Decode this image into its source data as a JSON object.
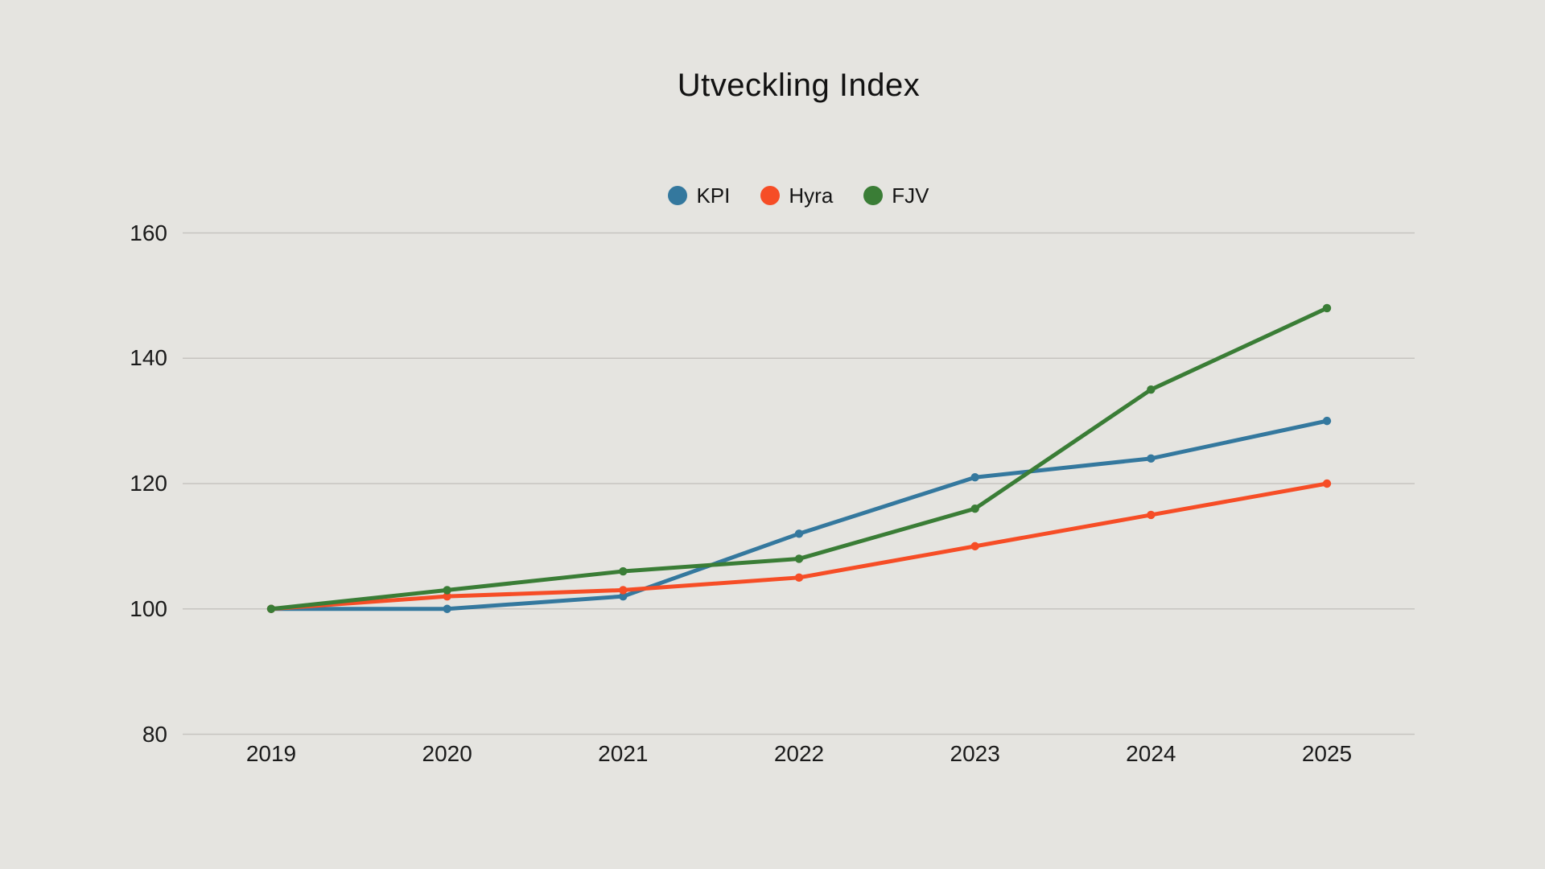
{
  "chart_data": {
    "type": "line",
    "title": "Utveckling Index",
    "categories": [
      "2019",
      "2020",
      "2021",
      "2022",
      "2023",
      "2024",
      "2025"
    ],
    "series": [
      {
        "name": "KPI",
        "color": "#34789e",
        "values": [
          100,
          100,
          102,
          112,
          121,
          124,
          130
        ]
      },
      {
        "name": "Hyra",
        "color": "#f64d26",
        "values": [
          100,
          102,
          103,
          105,
          110,
          115,
          120
        ]
      },
      {
        "name": "FJV",
        "color": "#3a7d36",
        "values": [
          100,
          103,
          106,
          108,
          116,
          135,
          148
        ]
      }
    ],
    "ylim": [
      80,
      160
    ],
    "yticks": [
      80,
      100,
      120,
      140,
      160
    ],
    "grid": true,
    "legend_position": "top",
    "xlabel": "",
    "ylabel": ""
  },
  "colors": {
    "background": "#e5e4e0",
    "gridline": "#c6c4c0",
    "text": "#1a1a1a"
  }
}
